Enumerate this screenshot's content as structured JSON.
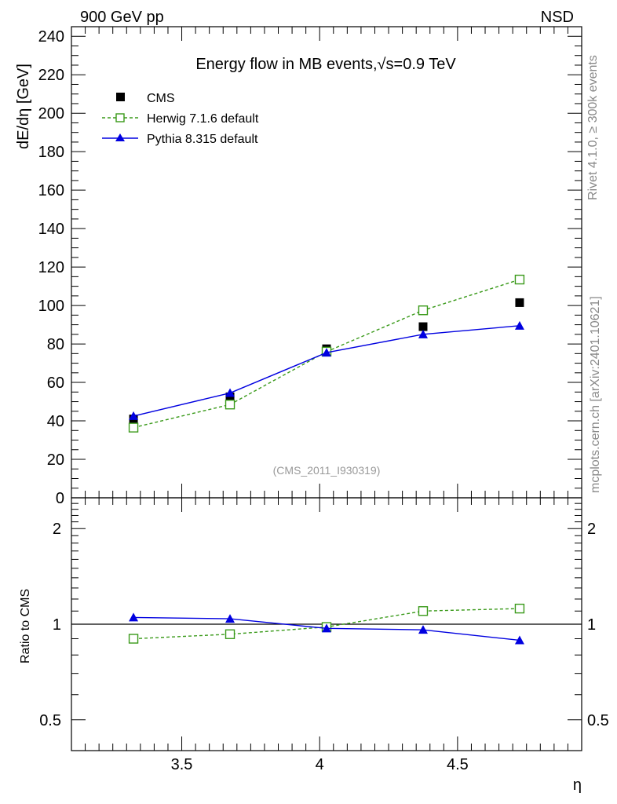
{
  "header": {
    "left": "900 GeV pp",
    "right": "NSD"
  },
  "side_text": {
    "rivet": "Rivet 4.1.0, ≥ 300k events",
    "mcplots": "mcplots.cern.ch [arXiv:2401.10621]"
  },
  "colors": {
    "data": "#000000",
    "herwig": "#3a9a1a",
    "pythia": "#0000e0",
    "watermark": "#999999"
  },
  "chart_data": {
    "type": "line",
    "title": "Energy flow in MB events,√s=0.9 TeV",
    "title_parts": {
      "main": "Energy flow in MB events,",
      "sqrt": "√",
      "rest": "s=0.9 TeV"
    },
    "analysis_tag": "(CMS_2011_I930319)",
    "xlabel": "η",
    "ylabel": "dE/dη [GeV]",
    "ratio_ylabel": "Ratio to CMS",
    "xlim": [
      3.1,
      4.95
    ],
    "ylim": [
      0,
      245
    ],
    "ratio_ylim": [
      0.4,
      2.5
    ],
    "x_ticks": [
      3.5,
      4,
      4.5
    ],
    "x_tick_labels": [
      "3.5",
      "4",
      "4.5"
    ],
    "y_ticks": [
      0,
      20,
      40,
      60,
      80,
      100,
      120,
      140,
      160,
      180,
      200,
      220,
      240
    ],
    "y_tick_labels": [
      "0",
      "20",
      "40",
      "60",
      "80",
      "100",
      "120",
      "140",
      "160",
      "180",
      "200",
      "220",
      "240"
    ],
    "ratio_ticks": [
      0.5,
      1,
      2
    ],
    "ratio_tick_labels": [
      "0.5",
      "1",
      "2"
    ],
    "x": [
      3.325,
      3.675,
      4.025,
      4.375,
      4.725
    ],
    "series": [
      {
        "name": "CMS",
        "key": "data",
        "values": [
          41,
          52.5,
          77.5,
          89,
          101.5
        ]
      },
      {
        "name": "Herwig 7.1.6 default",
        "key": "herwig",
        "values": [
          36.5,
          48.5,
          76,
          97.5,
          113.5
        ]
      },
      {
        "name": "Pythia 8.315 default",
        "key": "pythia",
        "values": [
          42.5,
          54.5,
          75.5,
          85,
          89.5
        ]
      }
    ],
    "ratio_series": [
      {
        "name": "Herwig 7.1.6 default",
        "key": "herwig",
        "values": [
          0.9,
          0.93,
          0.98,
          1.1,
          1.12
        ]
      },
      {
        "name": "Pythia 8.315 default",
        "key": "pythia",
        "values": [
          1.05,
          1.04,
          0.97,
          0.96,
          0.89
        ]
      }
    ]
  }
}
